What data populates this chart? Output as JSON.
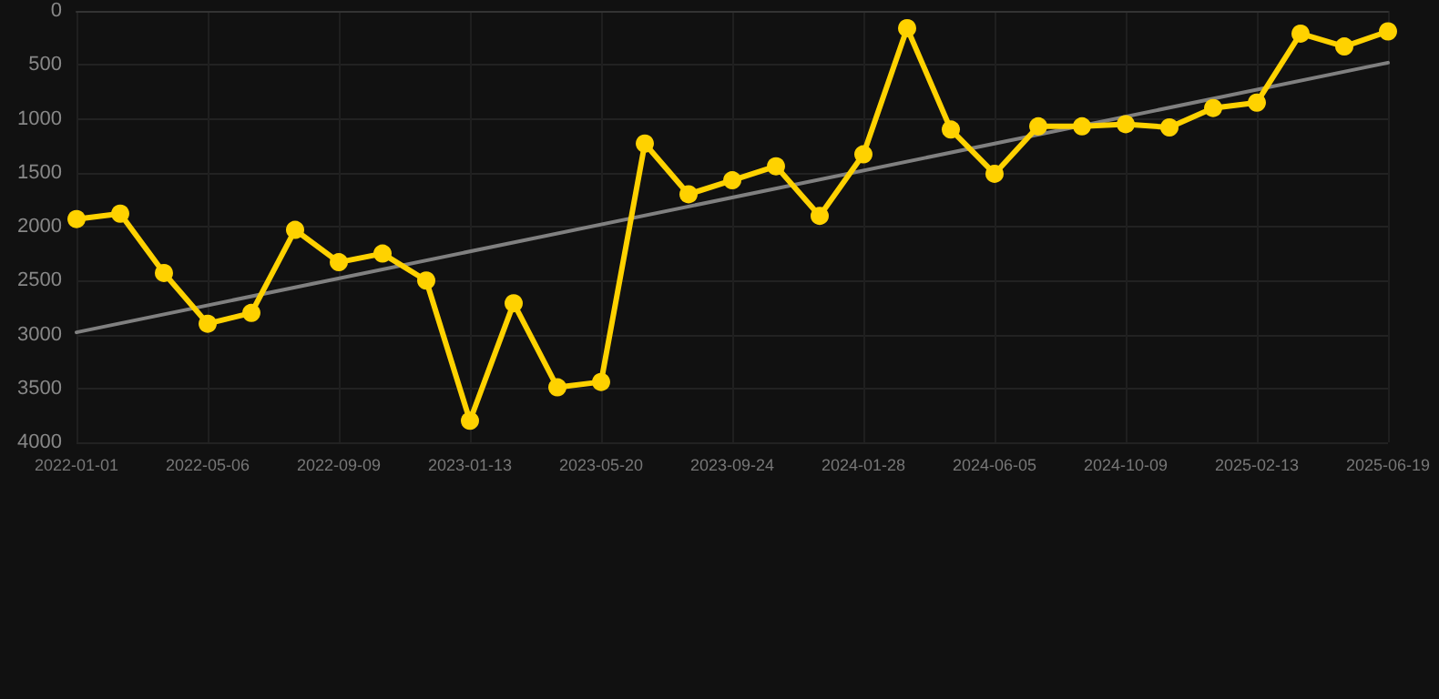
{
  "chart_data": {
    "type": "line",
    "categories": [
      "2022-01-01",
      null,
      null,
      "2022-05-06",
      null,
      null,
      "2022-09-09",
      null,
      null,
      "2023-01-13",
      null,
      null,
      "2023-05-20",
      null,
      null,
      "2023-09-24",
      null,
      null,
      "2024-01-28",
      null,
      null,
      "2024-06-05",
      null,
      null,
      "2024-10-09",
      null,
      null,
      "2025-02-13",
      null,
      null,
      "2025-06-19"
    ],
    "series": [
      {
        "color": "#ffd200",
        "values": [
          1930,
          1880,
          2430,
          2900,
          2800,
          2030,
          2330,
          2250,
          2500,
          3800,
          2710,
          3490,
          3440,
          1230,
          1700,
          1570,
          1440,
          1900,
          1330,
          160,
          1100,
          1510,
          1070,
          1070,
          1050,
          1080,
          900,
          850,
          210,
          330,
          190
        ]
      },
      {
        "type": "line",
        "color": "#808080",
        "marker": "none",
        "values": [
          2980,
          null,
          null,
          null,
          null,
          null,
          null,
          null,
          null,
          null,
          null,
          null,
          null,
          null,
          null,
          null,
          null,
          null,
          null,
          null,
          null,
          null,
          null,
          null,
          null,
          null,
          null,
          null,
          null,
          null,
          480
        ]
      }
    ],
    "ylim": [
      4000,
      0
    ],
    "yticks": [
      0,
      500,
      1000,
      1500,
      2000,
      2500,
      3000,
      3500,
      4000
    ],
    "grid": true,
    "marker": "circle",
    "line_style": "solid"
  }
}
